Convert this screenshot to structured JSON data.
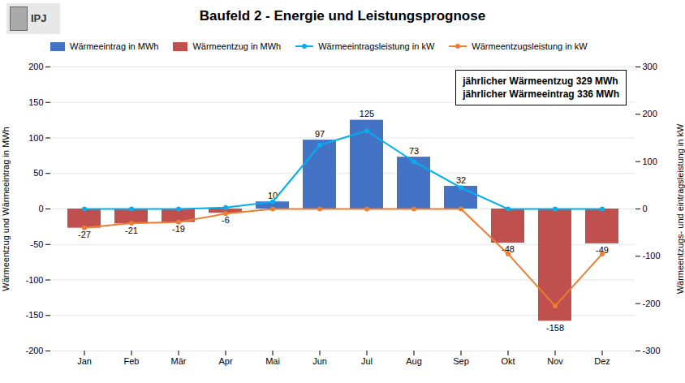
{
  "chart_data": {
    "type": "bar",
    "title": "Baufeld 2 - Energie und Leistungsprognose",
    "categories": [
      "Jan",
      "Feb",
      "Mär",
      "Apr",
      "Mai",
      "Jun",
      "Jul",
      "Aug",
      "Sep",
      "Okt",
      "Nov",
      "Dez"
    ],
    "series": [
      {
        "name": "Wärmeeintrag in MWh",
        "type": "bar",
        "color": "#4472C4",
        "values": [
          0,
          0,
          0,
          0,
          10,
          97,
          125,
          73,
          32,
          0,
          0,
          0
        ],
        "value_labels": [
          null,
          null,
          null,
          null,
          "10",
          "97",
          "125",
          "73",
          "32",
          null,
          null,
          null
        ]
      },
      {
        "name": "Wärmeentzug in MWh",
        "type": "bar",
        "color": "#C0504D",
        "values": [
          -27,
          -21,
          -19,
          -6,
          0,
          0,
          0,
          0,
          0,
          -48,
          -158,
          -49
        ],
        "value_labels": [
          "-27",
          "-21",
          "-19",
          "-6",
          null,
          null,
          null,
          null,
          null,
          "-48",
          "-158",
          "-49"
        ]
      },
      {
        "name": "Wärmeeintragsleistung in kW",
        "type": "line",
        "axis": "y2",
        "color": "#00B0F0",
        "marker": "circle",
        "values": [
          0,
          0,
          0,
          3,
          15,
          135,
          165,
          100,
          45,
          0,
          0,
          0
        ]
      },
      {
        "name": "Wärmeentzugsleistung in kW",
        "type": "line",
        "axis": "y2",
        "color": "#ED7D31",
        "marker": "circle",
        "values": [
          -40,
          -30,
          -28,
          -10,
          0,
          0,
          0,
          0,
          0,
          -95,
          -205,
          -95
        ]
      }
    ],
    "ylabel": "Wärmeentzug und Wärmeeintrag in MWh",
    "y2label": "Wärmeentzugs- und eintragsleistung in kW",
    "ylim": [
      -200,
      200
    ],
    "yticks": [
      -200,
      -150,
      -100,
      -50,
      0,
      50,
      100,
      150,
      200
    ],
    "y2lim": [
      -300,
      300
    ],
    "y2ticks": [
      -300,
      -200,
      -100,
      0,
      100,
      200,
      300
    ],
    "grid": true,
    "data_labels": true,
    "legend": "top",
    "annotations": [
      "jährlicher Wärmeentzug 329 MWh\njährlicher Wärmeeintrag 336 MWh",
      "IPJ"
    ]
  }
}
